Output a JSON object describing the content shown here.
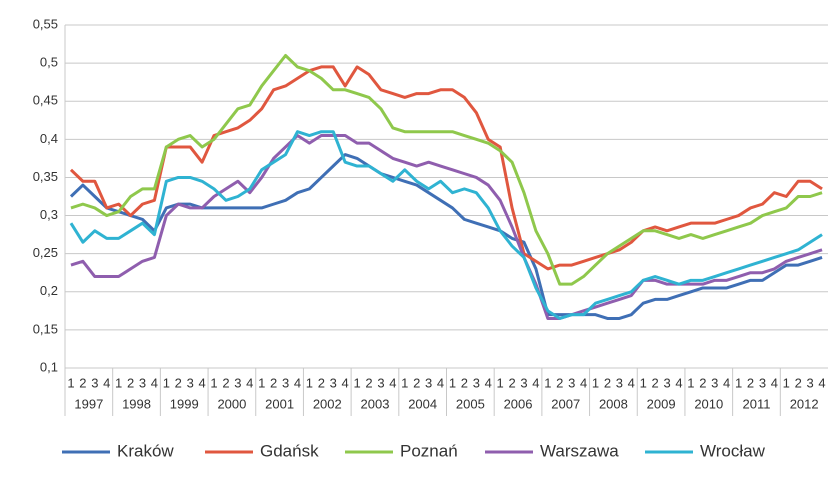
{
  "chart_data": {
    "type": "line",
    "categories": [
      "1",
      "2",
      "3",
      "4",
      "1",
      "2",
      "3",
      "4",
      "1",
      "2",
      "3",
      "4",
      "1",
      "2",
      "3",
      "4",
      "1",
      "2",
      "3",
      "4",
      "1",
      "2",
      "3",
      "4",
      "1",
      "2",
      "3",
      "4",
      "1",
      "2",
      "3",
      "4",
      "1",
      "2",
      "3",
      "4",
      "1",
      "2",
      "3",
      "4",
      "1",
      "2",
      "3",
      "4",
      "1",
      "2",
      "3",
      "4",
      "1",
      "2",
      "3",
      "4",
      "1",
      "2",
      "3",
      "4",
      "1",
      "2",
      "3",
      "4",
      "1",
      "2",
      "3",
      "4"
    ],
    "years": [
      "1997",
      "1998",
      "1999",
      "2000",
      "2001",
      "2002",
      "2003",
      "2004",
      "2005",
      "2006",
      "2007",
      "2008",
      "2009",
      "2010",
      "2011",
      "2012"
    ],
    "ylim": [
      0.1,
      0.55
    ],
    "yticks": [
      {
        "value": 0.1,
        "label": "0,1"
      },
      {
        "value": 0.15,
        "label": "0,15"
      },
      {
        "value": 0.2,
        "label": "0,2"
      },
      {
        "value": 0.25,
        "label": "0,25"
      },
      {
        "value": 0.3,
        "label": "0,3"
      },
      {
        "value": 0.35,
        "label": "0,35"
      },
      {
        "value": 0.4,
        "label": "0,4"
      },
      {
        "value": 0.45,
        "label": "0,45"
      },
      {
        "value": 0.5,
        "label": "0,5"
      },
      {
        "value": 0.55,
        "label": "0,55"
      }
    ],
    "grid": true,
    "legend": "bottom",
    "series": [
      {
        "name": "Kraków",
        "color": "#3f6fb5",
        "values": [
          0.325,
          0.34,
          0.325,
          0.31,
          0.305,
          0.3,
          0.295,
          0.28,
          0.31,
          0.315,
          0.315,
          0.31,
          0.31,
          0.31,
          0.31,
          0.31,
          0.31,
          0.315,
          0.32,
          0.33,
          0.335,
          0.35,
          0.365,
          0.38,
          0.375,
          0.365,
          0.355,
          0.35,
          0.345,
          0.34,
          0.33,
          0.32,
          0.31,
          0.295,
          0.29,
          0.285,
          0.28,
          0.27,
          0.265,
          0.23,
          0.17,
          0.17,
          0.17,
          0.17,
          0.17,
          0.165,
          0.165,
          0.17,
          0.185,
          0.19,
          0.19,
          0.195,
          0.2,
          0.205,
          0.205,
          0.205,
          0.21,
          0.215,
          0.215,
          0.225,
          0.235,
          0.235,
          0.24,
          0.245
        ]
      },
      {
        "name": "Gdańsk",
        "color": "#e0573f",
        "values": [
          0.36,
          0.345,
          0.345,
          0.31,
          0.315,
          0.3,
          0.315,
          0.32,
          0.39,
          0.39,
          0.39,
          0.37,
          0.405,
          0.41,
          0.415,
          0.425,
          0.44,
          0.465,
          0.47,
          0.48,
          0.49,
          0.495,
          0.495,
          0.47,
          0.495,
          0.485,
          0.465,
          0.46,
          0.455,
          0.46,
          0.46,
          0.465,
          0.465,
          0.455,
          0.435,
          0.4,
          0.39,
          0.31,
          0.25,
          0.24,
          0.23,
          0.235,
          0.235,
          0.24,
          0.245,
          0.25,
          0.255,
          0.265,
          0.28,
          0.285,
          0.28,
          0.285,
          0.29,
          0.29,
          0.29,
          0.295,
          0.3,
          0.31,
          0.315,
          0.33,
          0.325,
          0.345,
          0.345,
          0.335
        ]
      },
      {
        "name": "Poznań",
        "color": "#8fc84c",
        "values": [
          0.31,
          0.315,
          0.31,
          0.3,
          0.305,
          0.325,
          0.335,
          0.335,
          0.39,
          0.4,
          0.405,
          0.39,
          0.4,
          0.42,
          0.44,
          0.445,
          0.47,
          0.49,
          0.51,
          0.495,
          0.49,
          0.48,
          0.465,
          0.465,
          0.46,
          0.455,
          0.44,
          0.415,
          0.41,
          0.41,
          0.41,
          0.41,
          0.41,
          0.405,
          0.4,
          0.395,
          0.385,
          0.37,
          0.33,
          0.28,
          0.25,
          0.21,
          0.21,
          0.22,
          0.235,
          0.25,
          0.26,
          0.27,
          0.28,
          0.28,
          0.275,
          0.27,
          0.275,
          0.27,
          0.275,
          0.28,
          0.285,
          0.29,
          0.3,
          0.305,
          0.31,
          0.325,
          0.325,
          0.33
        ]
      },
      {
        "name": "Warszawa",
        "color": "#8f5eae",
        "values": [
          0.235,
          0.24,
          0.22,
          0.22,
          0.22,
          0.23,
          0.24,
          0.245,
          0.3,
          0.315,
          0.31,
          0.31,
          0.325,
          0.335,
          0.345,
          0.33,
          0.35,
          0.375,
          0.39,
          0.405,
          0.395,
          0.405,
          0.405,
          0.405,
          0.395,
          0.395,
          0.385,
          0.375,
          0.37,
          0.365,
          0.37,
          0.365,
          0.36,
          0.355,
          0.35,
          0.34,
          0.32,
          0.285,
          0.245,
          0.21,
          0.165,
          0.165,
          0.17,
          0.175,
          0.18,
          0.185,
          0.19,
          0.195,
          0.215,
          0.215,
          0.21,
          0.21,
          0.21,
          0.21,
          0.215,
          0.215,
          0.22,
          0.225,
          0.225,
          0.23,
          0.24,
          0.245,
          0.25,
          0.255
        ]
      },
      {
        "name": "Wrocław",
        "color": "#2fb3d2",
        "values": [
          0.29,
          0.265,
          0.28,
          0.27,
          0.27,
          0.28,
          0.29,
          0.275,
          0.345,
          0.35,
          0.35,
          0.345,
          0.335,
          0.32,
          0.325,
          0.335,
          0.36,
          0.37,
          0.38,
          0.41,
          0.405,
          0.41,
          0.41,
          0.37,
          0.365,
          0.365,
          0.355,
          0.345,
          0.36,
          0.345,
          0.335,
          0.345,
          0.33,
          0.335,
          0.33,
          0.31,
          0.28,
          0.26,
          0.245,
          0.205,
          0.175,
          0.165,
          0.17,
          0.17,
          0.185,
          0.19,
          0.195,
          0.2,
          0.215,
          0.22,
          0.215,
          0.21,
          0.215,
          0.215,
          0.22,
          0.225,
          0.23,
          0.235,
          0.24,
          0.245,
          0.25,
          0.255,
          0.265,
          0.275
        ]
      }
    ]
  }
}
